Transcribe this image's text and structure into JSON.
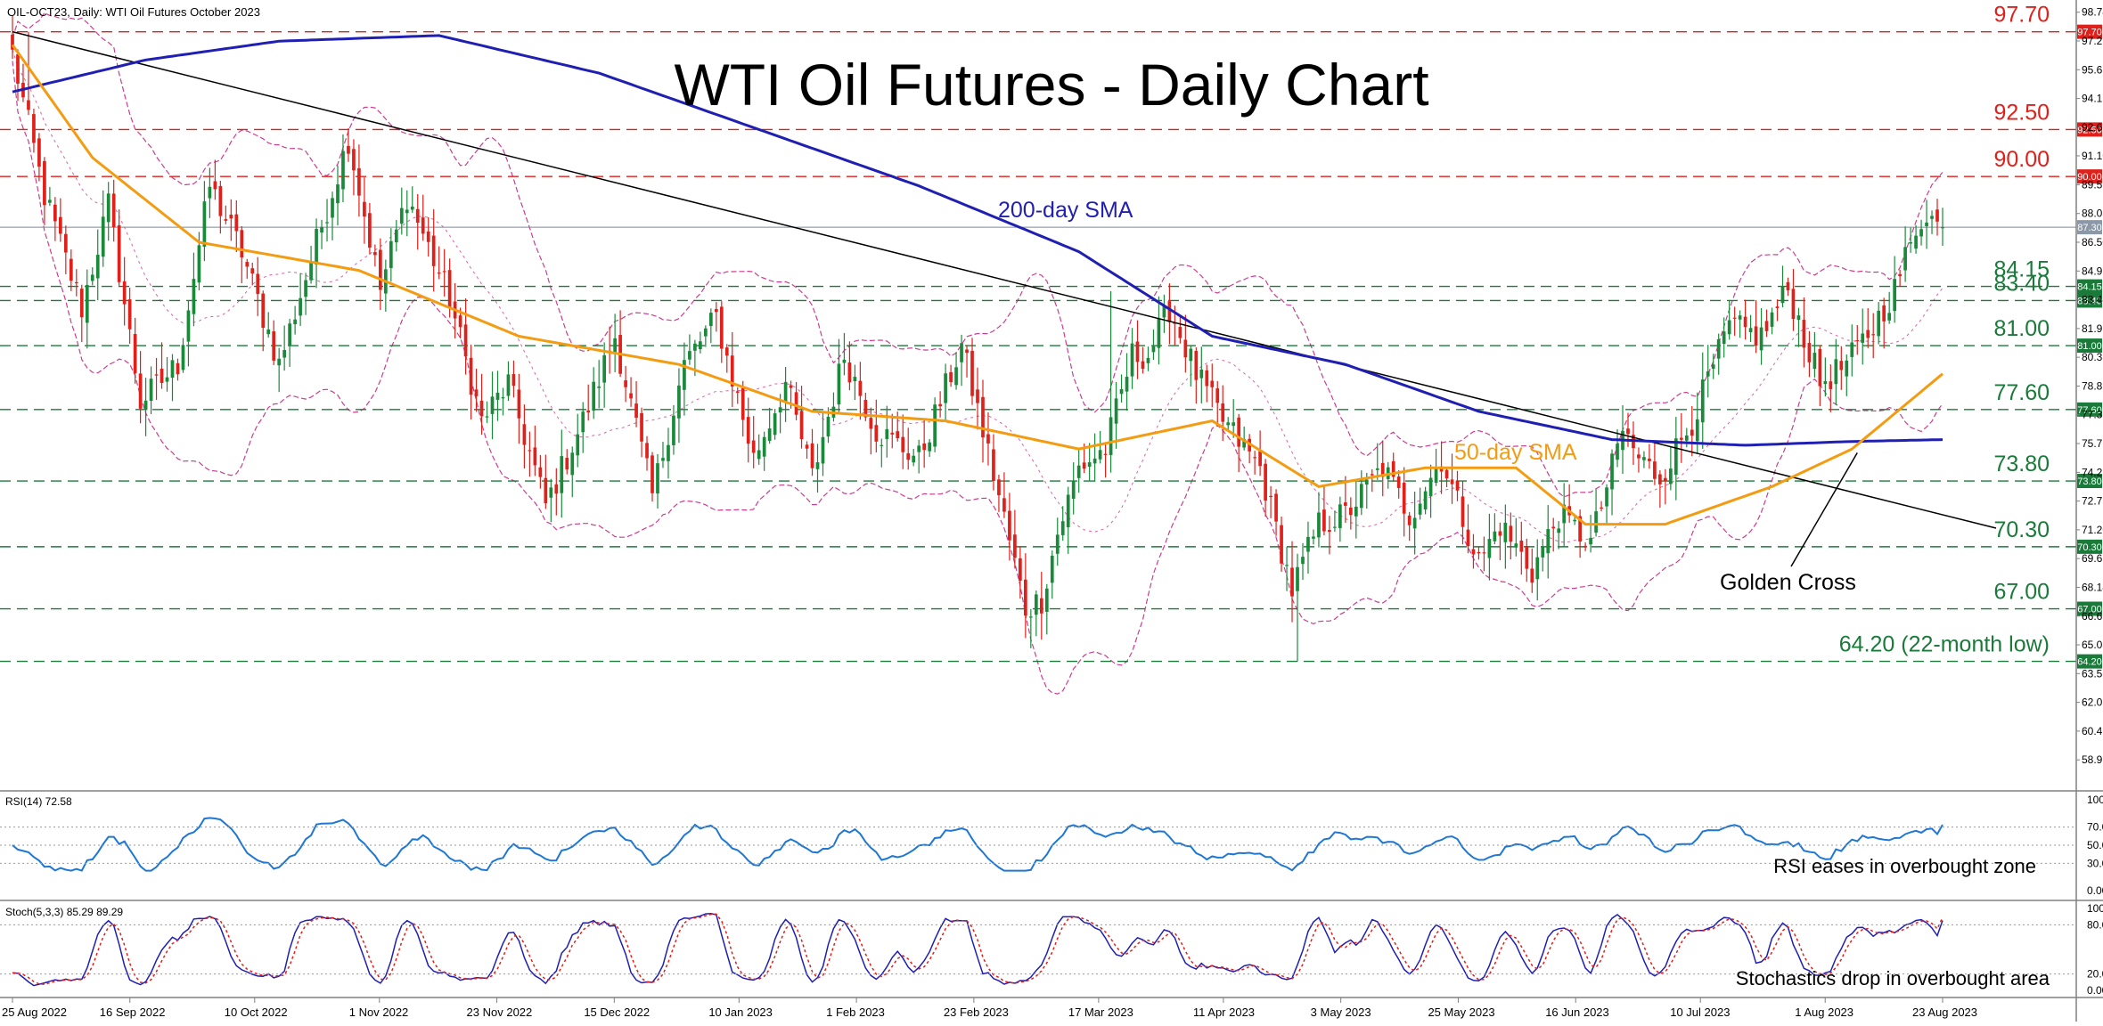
{
  "header": {
    "symbol_info": "OIL-OCT23, Daily:  WTI Oil Futures October 2023",
    "title": "WTI Oil Futures - Daily Chart"
  },
  "colors": {
    "up_candle": "#1a8a3a",
    "down_candle": "#e0201b",
    "sma200": "#1f1fb4",
    "sma50": "#f39c12",
    "bollinger": "#cc3d8f",
    "trendline": "#000000",
    "resistance": "#e0201b",
    "support": "#1a7a3a",
    "rsi_line": "#1f77d4",
    "stoch_k": "#1f1fb4",
    "stoch_d": "#e0201b"
  },
  "chart_data": [
    {
      "type": "candlestick",
      "panel": "price",
      "ylim": [
        57.5,
        99.2
      ],
      "y_ticks": [
        "98.74",
        "97.21",
        "95.68",
        "94.15",
        "92.62",
        "91.10",
        "89.56",
        "88.03",
        "86.50",
        "84.97",
        "83.44",
        "81.91",
        "80.38",
        "78.85",
        "77.32",
        "75.79",
        "74.26",
        "72.73",
        "71.20",
        "69.67",
        "68.14",
        "66.61",
        "65.08",
        "63.55",
        "62.02",
        "60.49",
        "58.96"
      ],
      "x_ticks": [
        "25 Aug 2022",
        "16 Sep 2022",
        "10 Oct 2022",
        "1 Nov 2022",
        "23 Nov 2022",
        "15 Dec 2022",
        "10 Jan 2023",
        "1 Feb 2023",
        "23 Feb 2023",
        "17 Mar 2023",
        "11 Apr 2023",
        "3 May 2023",
        "25 May 2023",
        "16 Jun 2023",
        "10 Jul 2023",
        "1 Aug 2023",
        "23 Aug 2023"
      ],
      "close_anchors": [
        [
          0,
          96.5
        ],
        [
          6,
          89.0
        ],
        [
          13,
          83.0
        ],
        [
          18,
          88.5
        ],
        [
          24,
          78.0
        ],
        [
          31,
          80.0
        ],
        [
          37,
          89.5
        ],
        [
          43,
          86.0
        ],
        [
          50,
          80.0
        ],
        [
          57,
          86.5
        ],
        [
          63,
          92.0
        ],
        [
          69,
          84.0
        ],
        [
          74,
          89.0
        ],
        [
          82,
          83.5
        ],
        [
          88,
          77.0
        ],
        [
          93,
          79.0
        ],
        [
          100,
          72.5
        ],
        [
          107,
          77.0
        ],
        [
          113,
          81.5
        ],
        [
          120,
          73.0
        ],
        [
          126,
          80.0
        ],
        [
          132,
          82.5
        ],
        [
          139,
          75.0
        ],
        [
          145,
          79.0
        ],
        [
          150,
          74.0
        ],
        [
          156,
          80.5
        ],
        [
          162,
          76.5
        ],
        [
          170,
          75.0
        ],
        [
          178,
          81.0
        ],
        [
          185,
          73.0
        ],
        [
          190,
          67.0
        ],
        [
          193,
          67.5
        ],
        [
          196,
          71.0
        ],
        [
          200,
          74.5
        ],
        [
          205,
          75.5
        ],
        [
          210,
          80.5
        ],
        [
          213,
          80.5
        ],
        [
          217,
          83.0
        ],
        [
          222,
          79.5
        ],
        [
          227,
          77.0
        ],
        [
          234,
          74.5
        ],
        [
          240,
          68.0
        ],
        [
          245,
          71.5
        ],
        [
          250,
          72.0
        ],
        [
          257,
          74.5
        ],
        [
          262,
          72.0
        ],
        [
          268,
          75.0
        ],
        [
          275,
          69.5
        ],
        [
          279,
          71.5
        ],
        [
          285,
          69.0
        ],
        [
          290,
          72.0
        ],
        [
          296,
          70.5
        ],
        [
          302,
          76.5
        ],
        [
          305,
          75.0
        ],
        [
          309,
          74.0
        ],
        [
          315,
          77.0
        ],
        [
          322,
          82.0
        ],
        [
          328,
          81.5
        ],
        [
          333,
          84.0
        ],
        [
          339,
          79.0
        ],
        [
          344,
          80.0
        ],
        [
          349,
          82.0
        ],
        [
          353,
          84.0
        ],
        [
          356,
          86.5
        ],
        [
          360,
          87.9
        ],
        [
          362,
          87.3
        ]
      ],
      "sma200_anchors": [
        [
          0,
          94.5
        ],
        [
          25,
          96.2
        ],
        [
          50,
          97.2
        ],
        [
          80,
          97.5
        ],
        [
          110,
          95.5
        ],
        [
          140,
          92.5
        ],
        [
          170,
          89.5
        ],
        [
          200,
          86.0
        ],
        [
          225,
          81.5
        ],
        [
          250,
          80.0
        ],
        [
          275,
          77.5
        ],
        [
          300,
          76.0
        ],
        [
          325,
          75.7
        ],
        [
          345,
          75.9
        ],
        [
          362,
          76.0
        ]
      ],
      "sma50_anchors": [
        [
          0,
          97.0
        ],
        [
          15,
          91.0
        ],
        [
          35,
          86.5
        ],
        [
          65,
          85.0
        ],
        [
          95,
          81.5
        ],
        [
          125,
          80.0
        ],
        [
          150,
          77.5
        ],
        [
          175,
          77.0
        ],
        [
          200,
          75.5
        ],
        [
          225,
          77.0
        ],
        [
          245,
          73.5
        ],
        [
          265,
          74.5
        ],
        [
          282,
          74.5
        ],
        [
          295,
          71.5
        ],
        [
          310,
          71.5
        ],
        [
          330,
          73.5
        ],
        [
          345,
          75.5
        ],
        [
          362,
          79.5
        ]
      ],
      "trendline": {
        "from": [
          0,
          97.7
        ],
        "to": [
          362,
          72.0
        ]
      },
      "resistance_levels": [
        {
          "value": 97.7,
          "label": "97.70",
          "axis_label": "97.70"
        },
        {
          "value": 92.5,
          "label": "92.50",
          "axis_label": "92.50"
        },
        {
          "value": 90.0,
          "label": "90.00",
          "axis_label": "90.00"
        }
      ],
      "support_levels": [
        {
          "value": 84.15,
          "label": "84.15",
          "axis_label": "84.15"
        },
        {
          "value": 83.4,
          "label": "83.40",
          "axis_label": "83.40"
        },
        {
          "value": 81.0,
          "label": "81.00",
          "axis_label": "81.00"
        },
        {
          "value": 77.6,
          "label": "77.60",
          "axis_label": "77.60"
        },
        {
          "value": 73.8,
          "label": "73.80",
          "axis_label": "73.80"
        },
        {
          "value": 70.3,
          "label": "70.30",
          "axis_label": "70.30"
        },
        {
          "value": 67.0,
          "label": "67.00",
          "axis_label": "67.00"
        },
        {
          "value": 64.2,
          "label": "64.20 (22-month low)",
          "axis_label": "64.20"
        }
      ],
      "current_price": {
        "value": 87.3,
        "label": "87.30"
      },
      "annotations": {
        "sma200": "200-day SMA",
        "sma50": "50-day SMA",
        "golden_cross": "Golden Cross",
        "golden_cross_point": [
          346,
          75.3
        ]
      }
    },
    {
      "type": "line",
      "panel": "rsi",
      "label": "RSI(14) 72.58",
      "ylim": [
        0,
        100
      ],
      "y_ticks": [
        "100.00",
        "70.00",
        "50.00",
        "30.00",
        "0.00"
      ],
      "annotation": "RSI eases in overbought zone"
    },
    {
      "type": "line",
      "panel": "stochastics",
      "label": "Stoch(5,3,3) 85.29 89.29",
      "ylim": [
        0,
        100
      ],
      "y_ticks": [
        "100.00",
        "80.00",
        "20.00",
        "0.00"
      ],
      "annotation": "Stochastics drop in overbought area"
    }
  ]
}
